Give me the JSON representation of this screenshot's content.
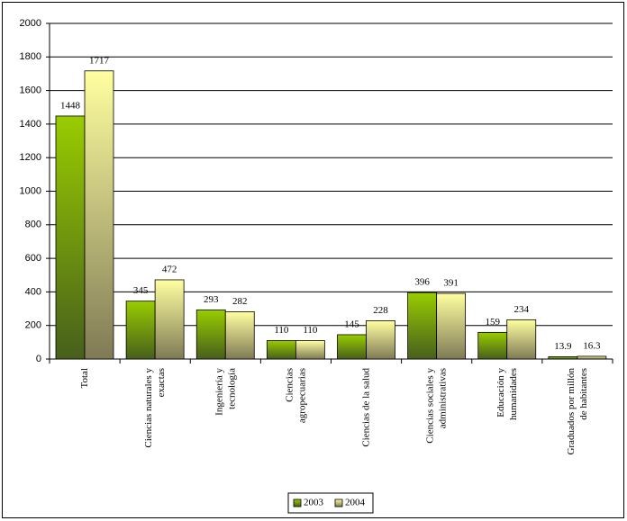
{
  "chart_data": {
    "type": "bar",
    "categories": [
      "Total",
      "Ciencias naturales y exactas",
      "Ingeniería y tecnología",
      "Ciencias agropecuarias",
      "Ciencias de la salud",
      "Ciencias sociales y administrativas",
      "Educación y humanidades",
      "Graduados por millón de habitantes"
    ],
    "series": [
      {
        "name": "2003",
        "color": "#8cbc0c",
        "values": [
          1448,
          345,
          293,
          110,
          145,
          396,
          159,
          13.9
        ]
      },
      {
        "name": "2004",
        "color": "#ffff99",
        "values": [
          1717,
          472,
          282,
          110,
          228,
          391,
          234,
          16.3
        ]
      }
    ],
    "ylim": [
      0,
      2000
    ],
    "yticks": [
      0,
      200,
      400,
      600,
      800,
      1000,
      1200,
      1400,
      1600,
      1800,
      2000
    ],
    "grid": true,
    "legend": "bottom"
  }
}
